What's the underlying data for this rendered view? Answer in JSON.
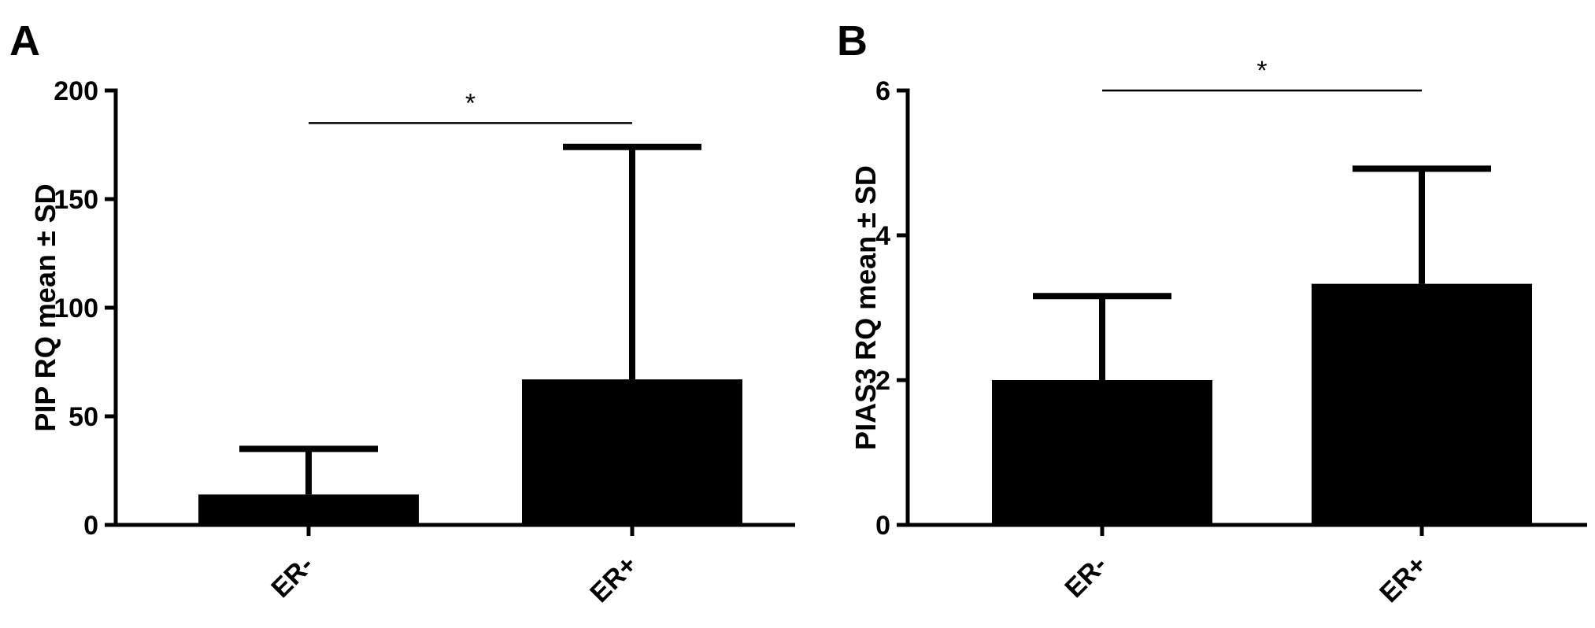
{
  "chart_data": [
    {
      "panel": "A",
      "type": "bar",
      "categories": [
        "ER-",
        "ER+"
      ],
      "values": [
        14,
        67
      ],
      "error_upper": [
        35,
        174
      ],
      "ylabel": "PIP RQ mean ± SD",
      "ylim": [
        0,
        200
      ],
      "yticks": [
        0,
        50,
        100,
        150,
        200
      ],
      "grid": false,
      "bar_color": "#000000",
      "significance": {
        "between": [
          "ER-",
          "ER+"
        ],
        "label": "*",
        "y": 185
      }
    },
    {
      "panel": "B",
      "type": "bar",
      "categories": [
        "ER-",
        "ER+"
      ],
      "values": [
        2.0,
        3.33
      ],
      "error_upper": [
        3.16,
        4.92
      ],
      "ylabel": "PIAS3 RQ mean ± SD",
      "ylim": [
        0,
        6
      ],
      "yticks": [
        0,
        2,
        4,
        6
      ],
      "grid": false,
      "bar_color": "#000000",
      "significance": {
        "between": [
          "ER-",
          "ER+"
        ],
        "label": "*",
        "y": 6
      }
    }
  ]
}
